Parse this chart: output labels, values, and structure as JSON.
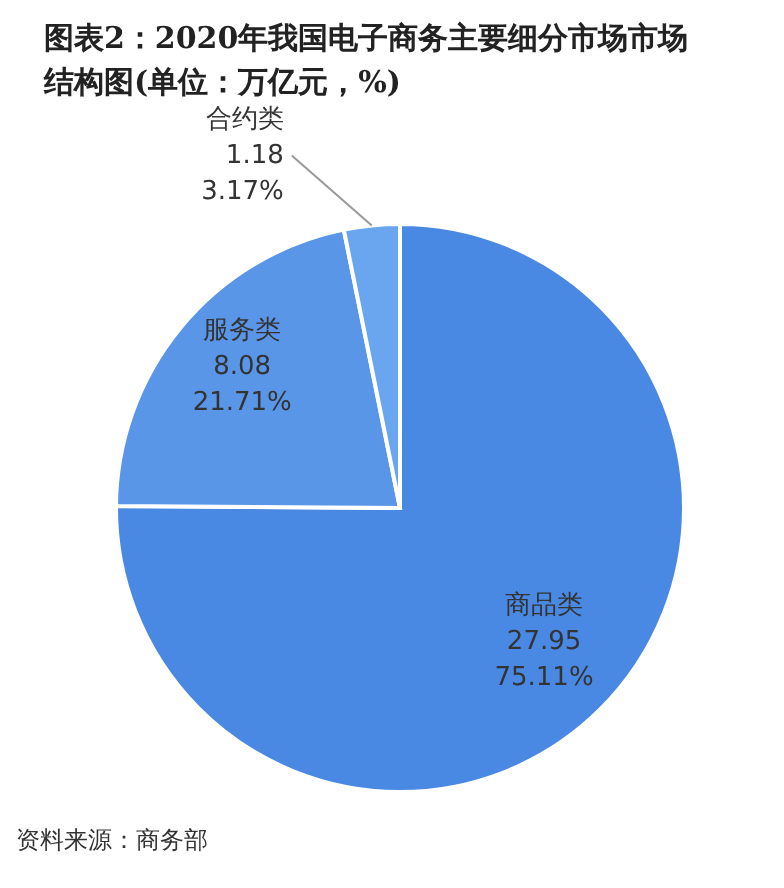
{
  "chart_data": {
    "type": "pie",
    "title": "图表2：2020年我国电子商务主要细分市场市场结构图(单位：万亿元，%)",
    "categories": [
      "商品类",
      "服务类",
      "合约类"
    ],
    "values": [
      27.95,
      8.08,
      1.18
    ],
    "value_labels": [
      "27.95\n75.11%",
      "8.08\n21.71%",
      "1.18\n3.17%"
    ],
    "colors": [
      "#4a89e3",
      "#5a96e8",
      "#6aa5f0"
    ],
    "legend": false,
    "annotations": [
      "资料来源：商务部"
    ]
  }
}
